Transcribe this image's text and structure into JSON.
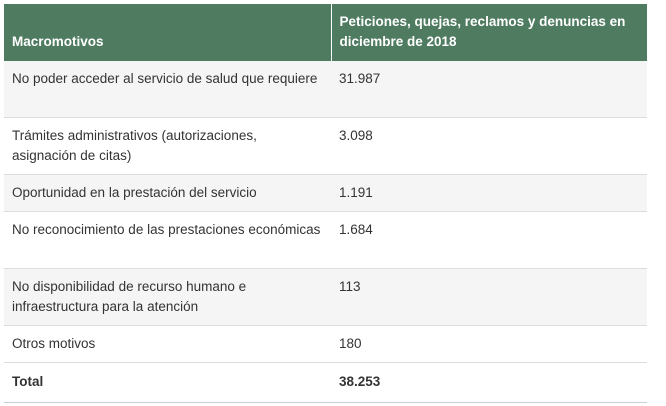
{
  "table": {
    "headers": [
      "Macromotivos",
      "Peticiones, quejas, reclamos y denuncias en diciembre de 2018"
    ],
    "rows": [
      {
        "motivo": "No poder acceder al servicio de salud que requiere",
        "valor": "31.987"
      },
      {
        "motivo": "Trámites administrativos (autorizaciones, asignación de citas)",
        "valor": "3.098"
      },
      {
        "motivo": "Oportunidad en la prestación del servicio",
        "valor": "1.191"
      },
      {
        "motivo": "No reconocimiento de las prestaciones económicas",
        "valor": "1.684"
      },
      {
        "motivo": "No disponibilidad de recurso humano e infraestructura para la atención",
        "valor": "113"
      },
      {
        "motivo": "Otros motivos",
        "valor": "180"
      }
    ],
    "total": {
      "label": "Total",
      "valor": "38.253"
    }
  },
  "colors": {
    "header_bg": "#4f7b61",
    "header_text": "#ffffff",
    "row_alt_bg": "#f5f5f5",
    "border": "#dcdcdc"
  }
}
